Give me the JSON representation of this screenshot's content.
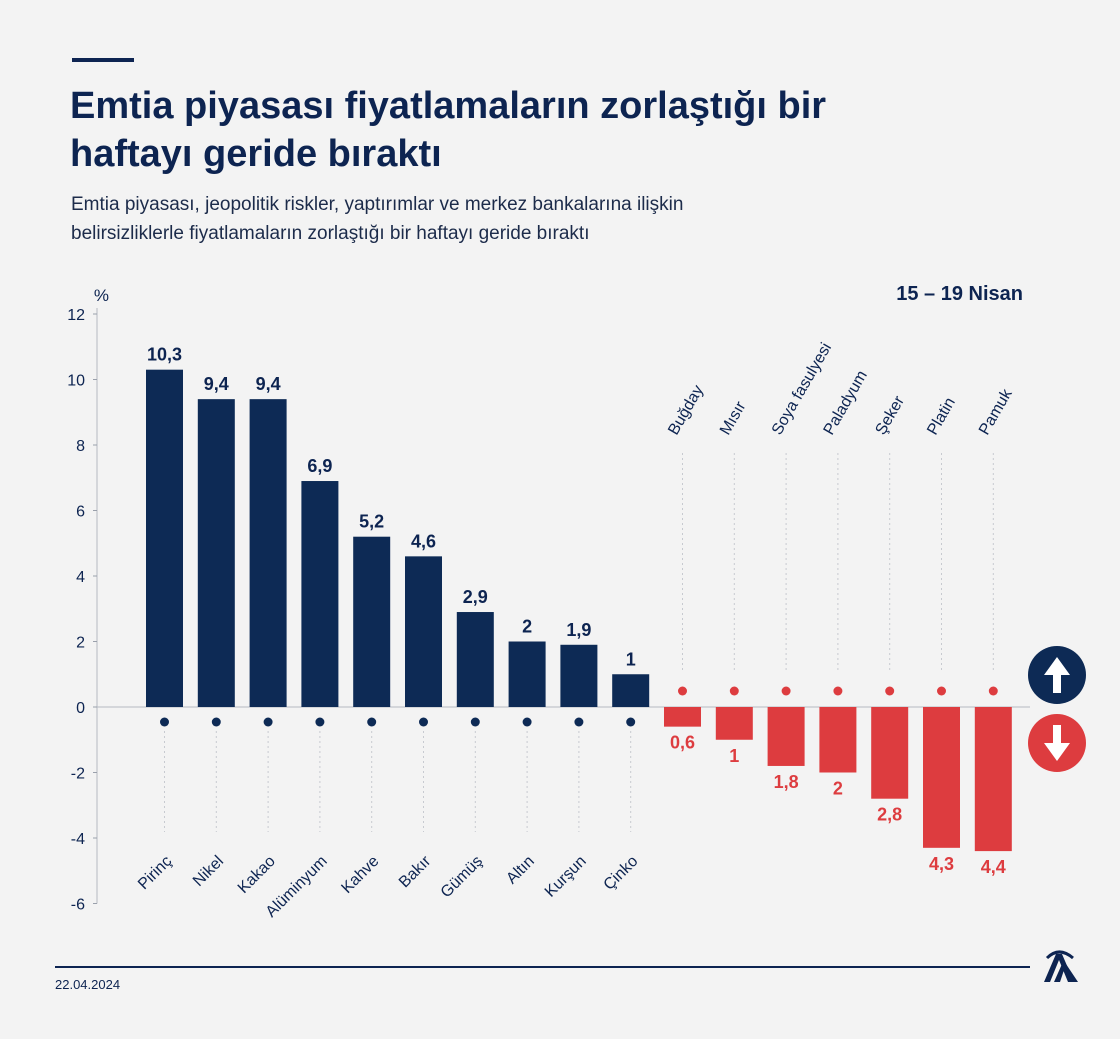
{
  "title_line1": "Emtia piyasası fiyatlamaların zorlaştığı bir",
  "title_line2": "haftayı geride bıraktı",
  "subtitle_line1": "Emtia piyasası, jeopolitik riskler, yaptırımlar ve merkez bankalarına ilişkin",
  "subtitle_line2": "belirsizliklerle fiyatlamaların zorlaştığı bir haftayı geride bıraktı",
  "period": "15 – 19 Nisan",
  "date": "22.04.2024",
  "logo_text": "AA",
  "colors": {
    "positive": "#0d2a55",
    "negative": "#dd3c3f",
    "text": "#0d2451"
  },
  "chart_data": {
    "type": "bar",
    "ylabel": "%",
    "ylim": [
      -6,
      12
    ],
    "yticks": [
      "12",
      "10",
      "8",
      "6",
      "4",
      "2",
      "0",
      "-2",
      "-4",
      "-6"
    ],
    "grid": false,
    "categories": [
      "Pirinç",
      "Nikel",
      "Kakao",
      "Alüminyum",
      "Kahve",
      "Bakır",
      "Gümüş",
      "Altın",
      "Kurşun",
      "Çinko",
      "Buğday",
      "Mısır",
      "Soya fasulyesi",
      "Paladyum",
      "Şeker",
      "Platin",
      "Pamuk"
    ],
    "values": [
      10.3,
      9.4,
      9.4,
      6.9,
      5.2,
      4.6,
      2.9,
      2.0,
      1.9,
      1.0,
      -0.6,
      -1.0,
      -1.8,
      -2.0,
      -2.8,
      -4.3,
      -4.4
    ],
    "labels": [
      "10,3",
      "9,4",
      "9,4",
      "6,9",
      "5,2",
      "4,6",
      "2,9",
      "2",
      "1,9",
      "1",
      "0,6",
      "1",
      "1,8",
      "2",
      "2,8",
      "4,3",
      "4,4"
    ]
  }
}
